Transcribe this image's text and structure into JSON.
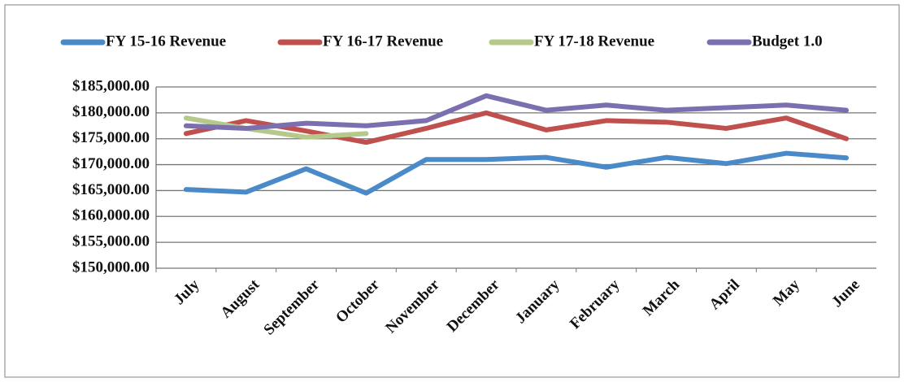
{
  "chart_data": {
    "type": "line",
    "categories": [
      "July",
      "August",
      "September",
      "October",
      "November",
      "December",
      "January",
      "February",
      "March",
      "April",
      "May",
      "June"
    ],
    "series": [
      {
        "name": "FY 15-16 Revenue",
        "color": "#4a8ac8",
        "values": [
          165200,
          164700,
          169200,
          164500,
          171000,
          171000,
          171400,
          169500,
          171400,
          170200,
          172200,
          171300
        ]
      },
      {
        "name": "FY 16-17 Revenue",
        "color": "#c0504d",
        "values": [
          176000,
          178500,
          176500,
          174300,
          177000,
          180000,
          176700,
          178500,
          178200,
          177000,
          179000,
          175000
        ]
      },
      {
        "name": "FY 17-18 Revenue",
        "color": "#b5c98a",
        "values": [
          179000,
          177000,
          175300,
          176000,
          null,
          null,
          null,
          null,
          null,
          null,
          null,
          null
        ]
      },
      {
        "name": "Budget 1.0",
        "color": "#7b6fb0",
        "values": [
          177500,
          177000,
          178000,
          177500,
          178500,
          183300,
          180500,
          181500,
          180500,
          181000,
          181500,
          180500
        ]
      }
    ],
    "ylim": [
      150000,
      185000
    ],
    "yticks": [
      {
        "value": 150000,
        "label": "$150,000.00"
      },
      {
        "value": 155000,
        "label": "$155,000.00"
      },
      {
        "value": 160000,
        "label": "$160,000.00"
      },
      {
        "value": 165000,
        "label": "$165,000.00"
      },
      {
        "value": 170000,
        "label": "$170,000.00"
      },
      {
        "value": 175000,
        "label": "$175,000.00"
      },
      {
        "value": 180000,
        "label": "$180,000.00"
      },
      {
        "value": 185000,
        "label": "$185,000.00"
      }
    ],
    "grid": true,
    "legend": "top"
  }
}
